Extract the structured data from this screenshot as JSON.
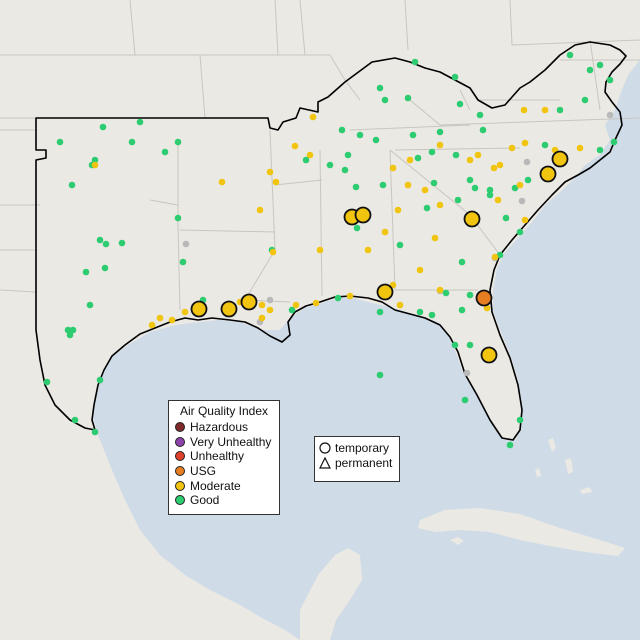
{
  "legend": {
    "title": "Air Quality Index",
    "items": [
      {
        "label": "Hazardous",
        "color": "#7e2a2a"
      },
      {
        "label": "Very Unhealthy",
        "color": "#8e44ad"
      },
      {
        "label": "Unhealthy",
        "color": "#e0402a"
      },
      {
        "label": "USG",
        "color": "#e67e22"
      },
      {
        "label": "Moderate",
        "color": "#f1c40f"
      },
      {
        "label": "Good",
        "color": "#2ecc71"
      }
    ]
  },
  "shape_legend": {
    "items": [
      {
        "label": "temporary",
        "shape": "circle-icon"
      },
      {
        "label": "permanent",
        "shape": "triangle-icon"
      }
    ]
  },
  "map_colors": {
    "ocean": "#cfdbe7",
    "land": "#ebe9e4",
    "region_outline": "#000000"
  },
  "monitors": {
    "good": [
      [
        60,
        142
      ],
      [
        103,
        127
      ],
      [
        132,
        142
      ],
      [
        140,
        122
      ],
      [
        178,
        142
      ],
      [
        165,
        152
      ],
      [
        95,
        160
      ],
      [
        92,
        165
      ],
      [
        72,
        185
      ],
      [
        100,
        240
      ],
      [
        106,
        244
      ],
      [
        122,
        243
      ],
      [
        86,
        272
      ],
      [
        105,
        268
      ],
      [
        90,
        305
      ],
      [
        68,
        330
      ],
      [
        70,
        335
      ],
      [
        73,
        330
      ],
      [
        100,
        380
      ],
      [
        47,
        382
      ],
      [
        75,
        420
      ],
      [
        95,
        432
      ],
      [
        178,
        218
      ],
      [
        183,
        262
      ],
      [
        203,
        300
      ],
      [
        306,
        160
      ],
      [
        330,
        165
      ],
      [
        342,
        130
      ],
      [
        348,
        155
      ],
      [
        360,
        135
      ],
      [
        356,
        187
      ],
      [
        376,
        140
      ],
      [
        383,
        185
      ],
      [
        385,
        100
      ],
      [
        380,
        88
      ],
      [
        415,
        62
      ],
      [
        408,
        98
      ],
      [
        413,
        135
      ],
      [
        418,
        158
      ],
      [
        432,
        152
      ],
      [
        440,
        132
      ],
      [
        460,
        104
      ],
      [
        455,
        77
      ],
      [
        480,
        115
      ],
      [
        456,
        155
      ],
      [
        483,
        130
      ],
      [
        490,
        190
      ],
      [
        475,
        188
      ],
      [
        458,
        200
      ],
      [
        427,
        208
      ],
      [
        400,
        245
      ],
      [
        380,
        312
      ],
      [
        357,
        228
      ],
      [
        345,
        170
      ],
      [
        338,
        298
      ],
      [
        420,
        312
      ],
      [
        432,
        315
      ],
      [
        446,
        293
      ],
      [
        470,
        295
      ],
      [
        455,
        345
      ],
      [
        490,
        195
      ],
      [
        515,
        188
      ],
      [
        520,
        232
      ],
      [
        528,
        180
      ],
      [
        545,
        145
      ],
      [
        560,
        110
      ],
      [
        570,
        55
      ],
      [
        585,
        100
      ],
      [
        590,
        70
      ],
      [
        600,
        65
      ],
      [
        610,
        80
      ],
      [
        600,
        150
      ],
      [
        614,
        142
      ],
      [
        520,
        420
      ],
      [
        510,
        445
      ],
      [
        465,
        400
      ],
      [
        462,
        310
      ],
      [
        470,
        345
      ],
      [
        380,
        375
      ],
      [
        500,
        255
      ],
      [
        462,
        262
      ],
      [
        272,
        250
      ],
      [
        292,
        310
      ],
      [
        470,
        180
      ],
      [
        506,
        218
      ],
      [
        434,
        183
      ]
    ],
    "moderate": [
      [
        95,
        165
      ],
      [
        222,
        182
      ],
      [
        260,
        210
      ],
      [
        270,
        172
      ],
      [
        276,
        182
      ],
      [
        310,
        155
      ],
      [
        295,
        146
      ],
      [
        152,
        325
      ],
      [
        160,
        318
      ],
      [
        172,
        320
      ],
      [
        185,
        312
      ],
      [
        240,
        302
      ],
      [
        262,
        305
      ],
      [
        270,
        310
      ],
      [
        296,
        305
      ],
      [
        316,
        303
      ],
      [
        320,
        250
      ],
      [
        368,
        250
      ],
      [
        356,
        218
      ],
      [
        393,
        168
      ],
      [
        410,
        160
      ],
      [
        408,
        185
      ],
      [
        425,
        190
      ],
      [
        440,
        205
      ],
      [
        435,
        238
      ],
      [
        420,
        270
      ],
      [
        393,
        285
      ],
      [
        400,
        305
      ],
      [
        440,
        290
      ],
      [
        470,
        160
      ],
      [
        478,
        155
      ],
      [
        494,
        168
      ],
      [
        512,
        148
      ],
      [
        525,
        143
      ],
      [
        555,
        150
      ],
      [
        580,
        148
      ],
      [
        545,
        110
      ],
      [
        524,
        110
      ],
      [
        525,
        220
      ],
      [
        495,
        257
      ],
      [
        487,
        308
      ],
      [
        498,
        200
      ],
      [
        520,
        185
      ],
      [
        313,
        117
      ],
      [
        350,
        296
      ],
      [
        398,
        210
      ],
      [
        500,
        165
      ],
      [
        440,
        145
      ],
      [
        385,
        232
      ],
      [
        262,
        318
      ],
      [
        273,
        252
      ],
      [
        228,
        310
      ]
    ],
    "gray": [
      [
        186,
        244
      ],
      [
        260,
        322
      ],
      [
        270,
        300
      ],
      [
        440,
        291
      ],
      [
        467,
        373
      ],
      [
        495,
        258
      ],
      [
        527,
        162
      ],
      [
        610,
        115
      ],
      [
        522,
        201
      ]
    ],
    "moderate_large": [
      [
        199,
        309
      ],
      [
        229,
        309
      ],
      [
        249,
        302
      ],
      [
        352,
        217
      ],
      [
        363,
        215
      ],
      [
        385,
        292
      ],
      [
        472,
        219
      ],
      [
        548,
        174
      ],
      [
        560,
        159
      ],
      [
        489,
        355
      ]
    ],
    "usg_large": [
      [
        484,
        298
      ]
    ]
  }
}
